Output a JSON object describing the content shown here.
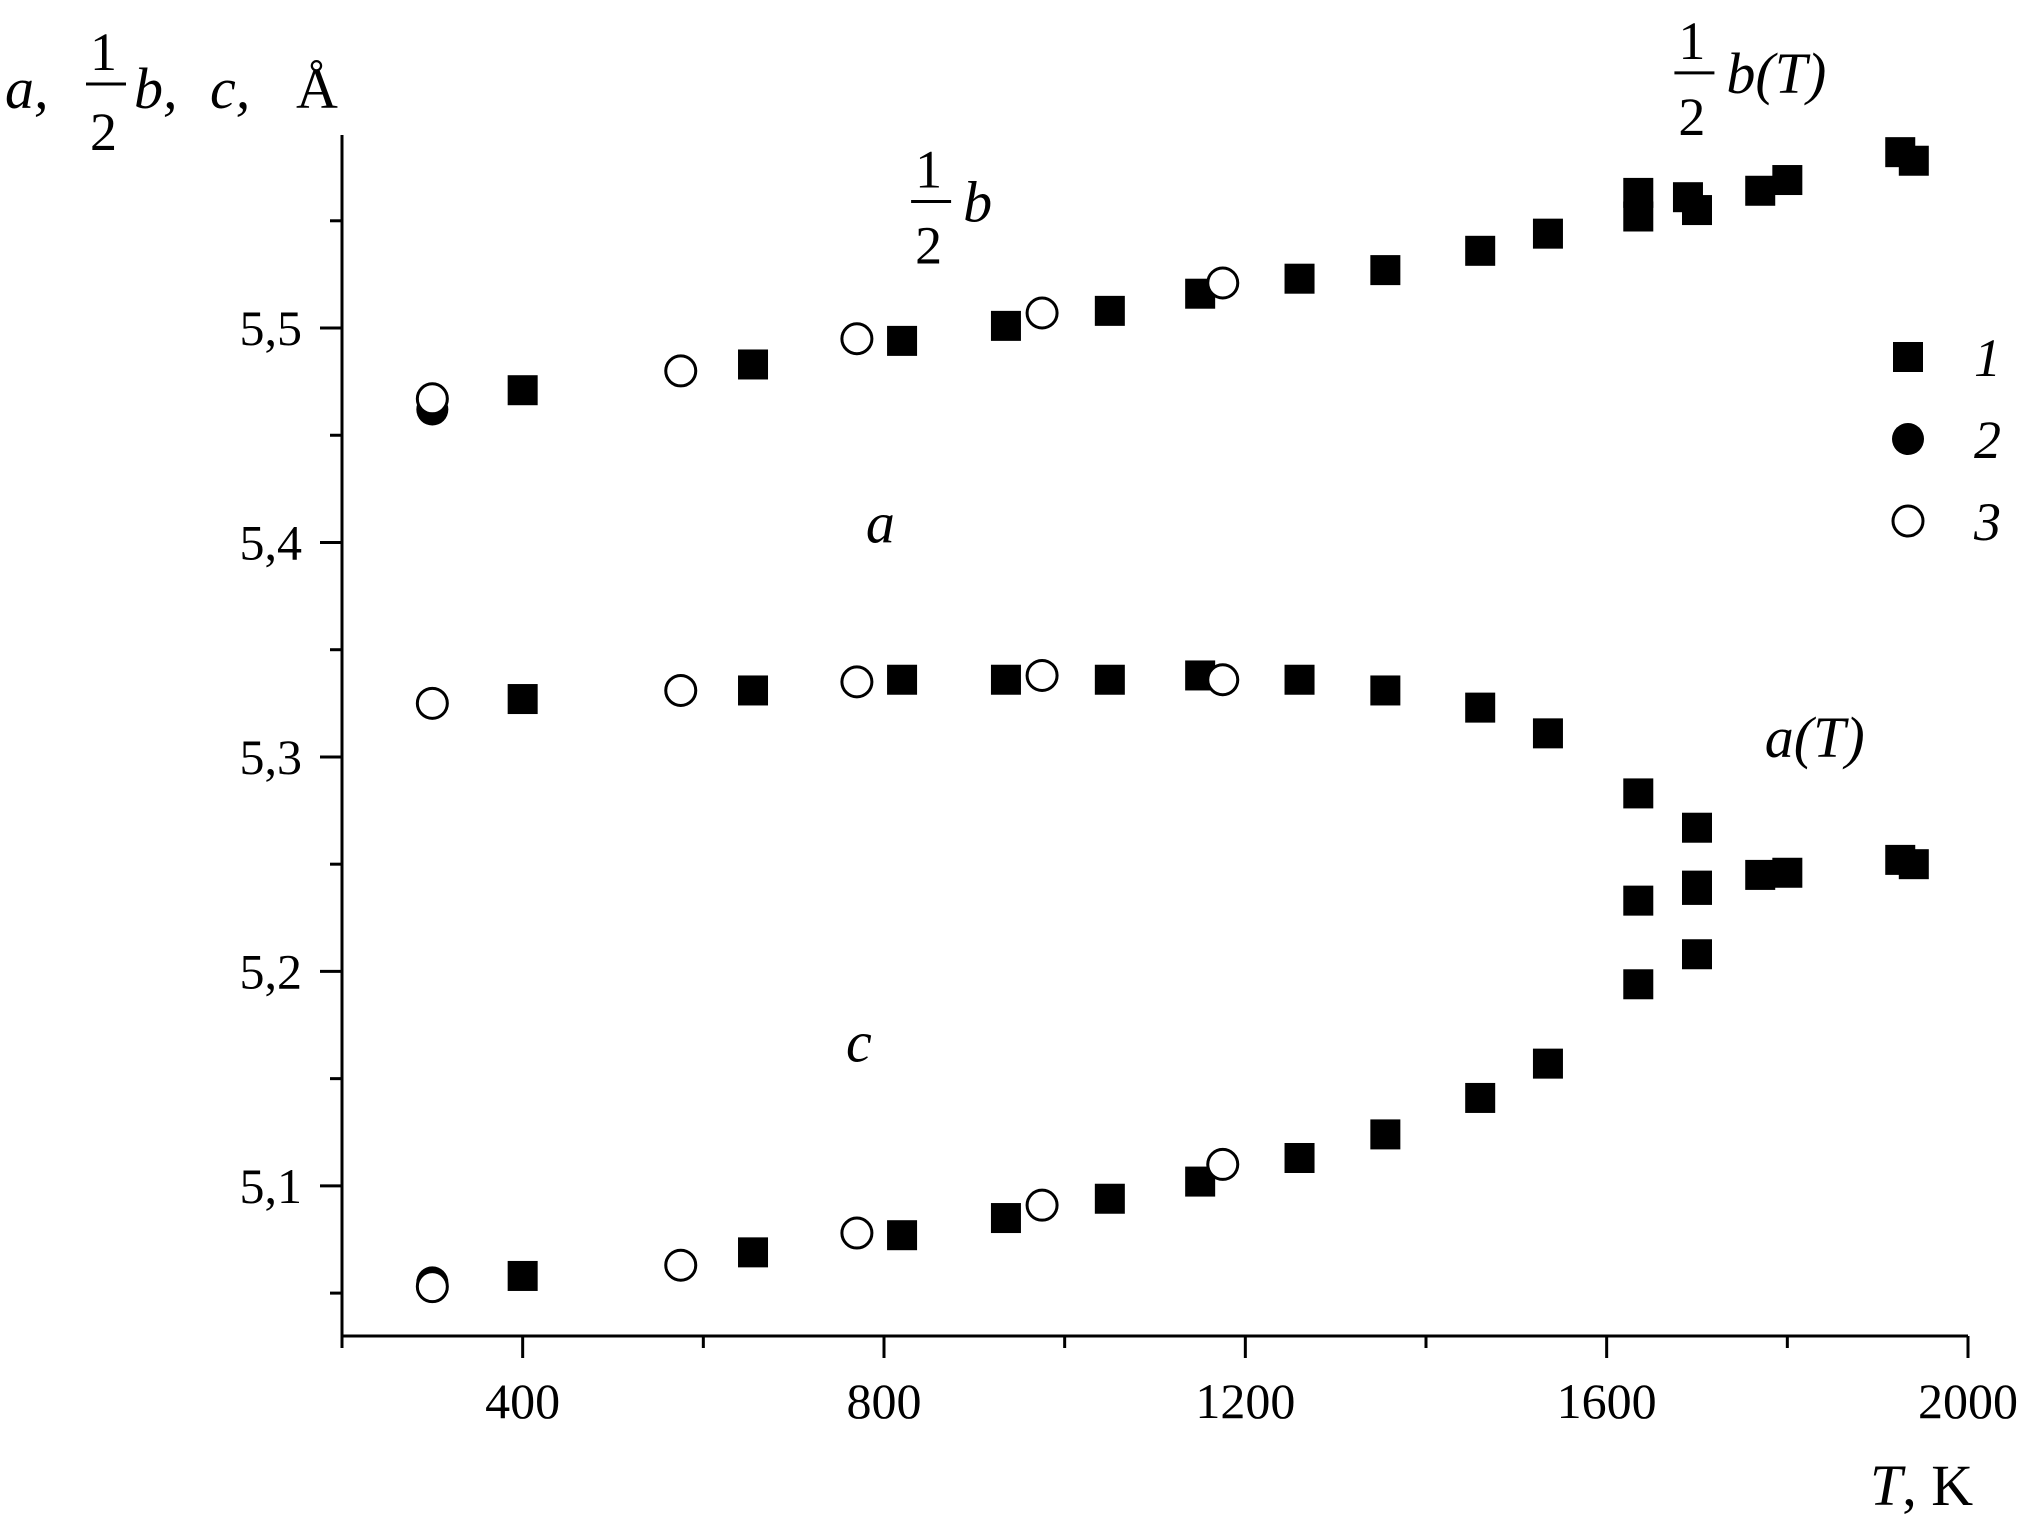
{
  "chart_data": {
    "type": "scatter",
    "xlabel": {
      "symbol": "T",
      "unit": ", K"
    },
    "ylabel": {
      "parts": [
        "a,",
        "1",
        "2",
        "b,",
        "c,",
        "Å"
      ]
    },
    "xlim": [
      200,
      2000
    ],
    "ylim": [
      5.03,
      5.59
    ],
    "x_ticks": [
      400,
      800,
      1200,
      1600,
      2000
    ],
    "x_tick_labels": [
      "400",
      "800",
      "1200",
      "1600",
      "2000"
    ],
    "y_ticks": [
      5.1,
      5.2,
      5.3,
      5.4,
      5.5
    ],
    "y_tick_labels": [
      "5,1",
      "5,2",
      "5,3",
      "5,4",
      "5,5"
    ],
    "annotations": [
      {
        "id": "half-b",
        "num": "1",
        "den": "2",
        "text": "b",
        "x": 830,
        "y": 5.545
      },
      {
        "id": "a",
        "text": "a",
        "x": 780,
        "y": 5.4
      },
      {
        "id": "c",
        "text": "c",
        "x": 758,
        "y": 5.158
      },
      {
        "id": "half-b-T",
        "num": "1",
        "den": "2",
        "text": "b(T)",
        "x": 1675,
        "y": 5.605
      },
      {
        "id": "a-T",
        "text": "a(T)",
        "x": 1775,
        "y": 5.3
      }
    ],
    "legend": {
      "position": "right",
      "entries": [
        {
          "marker": "filled-square",
          "label": "1"
        },
        {
          "marker": "filled-circle",
          "label": "2"
        },
        {
          "marker": "open-circle",
          "label": "3"
        }
      ]
    },
    "series": [
      {
        "name": "1",
        "marker": "filled-square",
        "points": [
          [
            400,
            5.471
          ],
          [
            655,
            5.483
          ],
          [
            820,
            5.494
          ],
          [
            935,
            5.501
          ],
          [
            1050,
            5.508
          ],
          [
            1150,
            5.516
          ],
          [
            1260,
            5.523
          ],
          [
            1355,
            5.527
          ],
          [
            1460,
            5.536
          ],
          [
            1535,
            5.544
          ],
          [
            1635,
            5.563
          ],
          [
            1635,
            5.552
          ],
          [
            1690,
            5.561
          ],
          [
            1700,
            5.555
          ],
          [
            1770,
            5.564
          ],
          [
            1800,
            5.569
          ],
          [
            1925,
            5.582
          ],
          [
            1940,
            5.578
          ],
          [
            400,
            5.327
          ],
          [
            655,
            5.331
          ],
          [
            820,
            5.336
          ],
          [
            935,
            5.336
          ],
          [
            1050,
            5.336
          ],
          [
            1150,
            5.338
          ],
          [
            1260,
            5.336
          ],
          [
            1355,
            5.331
          ],
          [
            1460,
            5.323
          ],
          [
            1535,
            5.311
          ],
          [
            1635,
            5.283
          ],
          [
            1700,
            5.267
          ],
          [
            1635,
            5.233
          ],
          [
            1700,
            5.24
          ],
          [
            1700,
            5.238
          ],
          [
            1770,
            5.245
          ],
          [
            1800,
            5.246
          ],
          [
            1925,
            5.252
          ],
          [
            1940,
            5.25
          ],
          [
            1635,
            5.194
          ],
          [
            1700,
            5.208
          ],
          [
            400,
            5.058
          ],
          [
            655,
            5.069
          ],
          [
            820,
            5.077
          ],
          [
            935,
            5.085
          ],
          [
            1050,
            5.094
          ],
          [
            1150,
            5.102
          ],
          [
            1260,
            5.113
          ],
          [
            1355,
            5.124
          ],
          [
            1460,
            5.141
          ],
          [
            1535,
            5.157
          ]
        ]
      },
      {
        "name": "2",
        "marker": "filled-circle",
        "points": [
          [
            300,
            5.462
          ],
          [
            300,
            5.325
          ],
          [
            300,
            5.055
          ]
        ]
      },
      {
        "name": "3",
        "marker": "open-circle",
        "points": [
          [
            300,
            5.467
          ],
          [
            575,
            5.48
          ],
          [
            770,
            5.495
          ],
          [
            975,
            5.507
          ],
          [
            1175,
            5.521
          ],
          [
            300,
            5.325
          ],
          [
            575,
            5.331
          ],
          [
            770,
            5.335
          ],
          [
            975,
            5.338
          ],
          [
            1175,
            5.336
          ],
          [
            300,
            5.053
          ],
          [
            575,
            5.063
          ],
          [
            770,
            5.078
          ],
          [
            975,
            5.091
          ],
          [
            1175,
            5.11
          ]
        ]
      }
    ]
  }
}
